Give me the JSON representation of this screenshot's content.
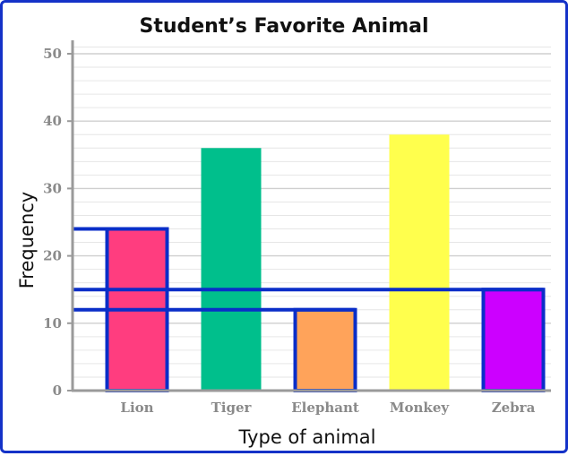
{
  "chart_data": {
    "type": "bar",
    "title": "Student’s Favorite Animal",
    "xlabel": "Type of animal",
    "ylabel": "Frequency",
    "categories": [
      "Lion",
      "Tiger",
      "Elephant",
      "Monkey",
      "Zebra"
    ],
    "values": [
      24,
      36,
      12,
      38,
      15
    ],
    "bar_colors": [
      "#ff3d7f",
      "#00bf8c",
      "#ffa35a",
      "#ffff4d",
      "#cc00ff"
    ],
    "highlighted": [
      "Lion",
      "Elephant",
      "Zebra"
    ],
    "highlight_color": "#0a2ec8",
    "reference_lines": [
      24,
      15,
      12
    ],
    "ylim": [
      0,
      50
    ],
    "yticks": [
      0,
      10,
      20,
      30,
      40,
      50
    ],
    "grid": true,
    "grid_minor_step": 2
  }
}
